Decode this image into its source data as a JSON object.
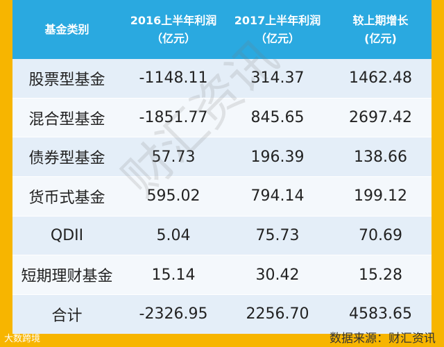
{
  "table": {
    "header": [
      [
        "基金类别"
      ],
      [
        "2016上半年利润",
        "（亿元）"
      ],
      [
        "2017上半年利润",
        "（亿元）"
      ],
      [
        "较上期增长",
        "(亿元)"
      ]
    ],
    "rows": [
      [
        "股票型基金",
        "-1148.11",
        "314.37",
        "1462.48"
      ],
      [
        "混合型基金",
        "-1851.77",
        "845.65",
        "2697.42"
      ],
      [
        "债券型基金",
        "57.73",
        "196.39",
        "138.66"
      ],
      [
        "货币式基金",
        "595.02",
        "794.14",
        "199.12"
      ],
      [
        "QDII",
        "5.04",
        "75.73",
        "70.69"
      ],
      [
        "短期理财基金",
        "15.14",
        "30.42",
        "15.28"
      ],
      [
        "合计",
        "-2326.95",
        "2256.70",
        "4583.65"
      ]
    ]
  },
  "watermark": "财汇资讯",
  "footer": {
    "source": "数据来源：财汇资讯",
    "logo": "大数跨境"
  }
}
